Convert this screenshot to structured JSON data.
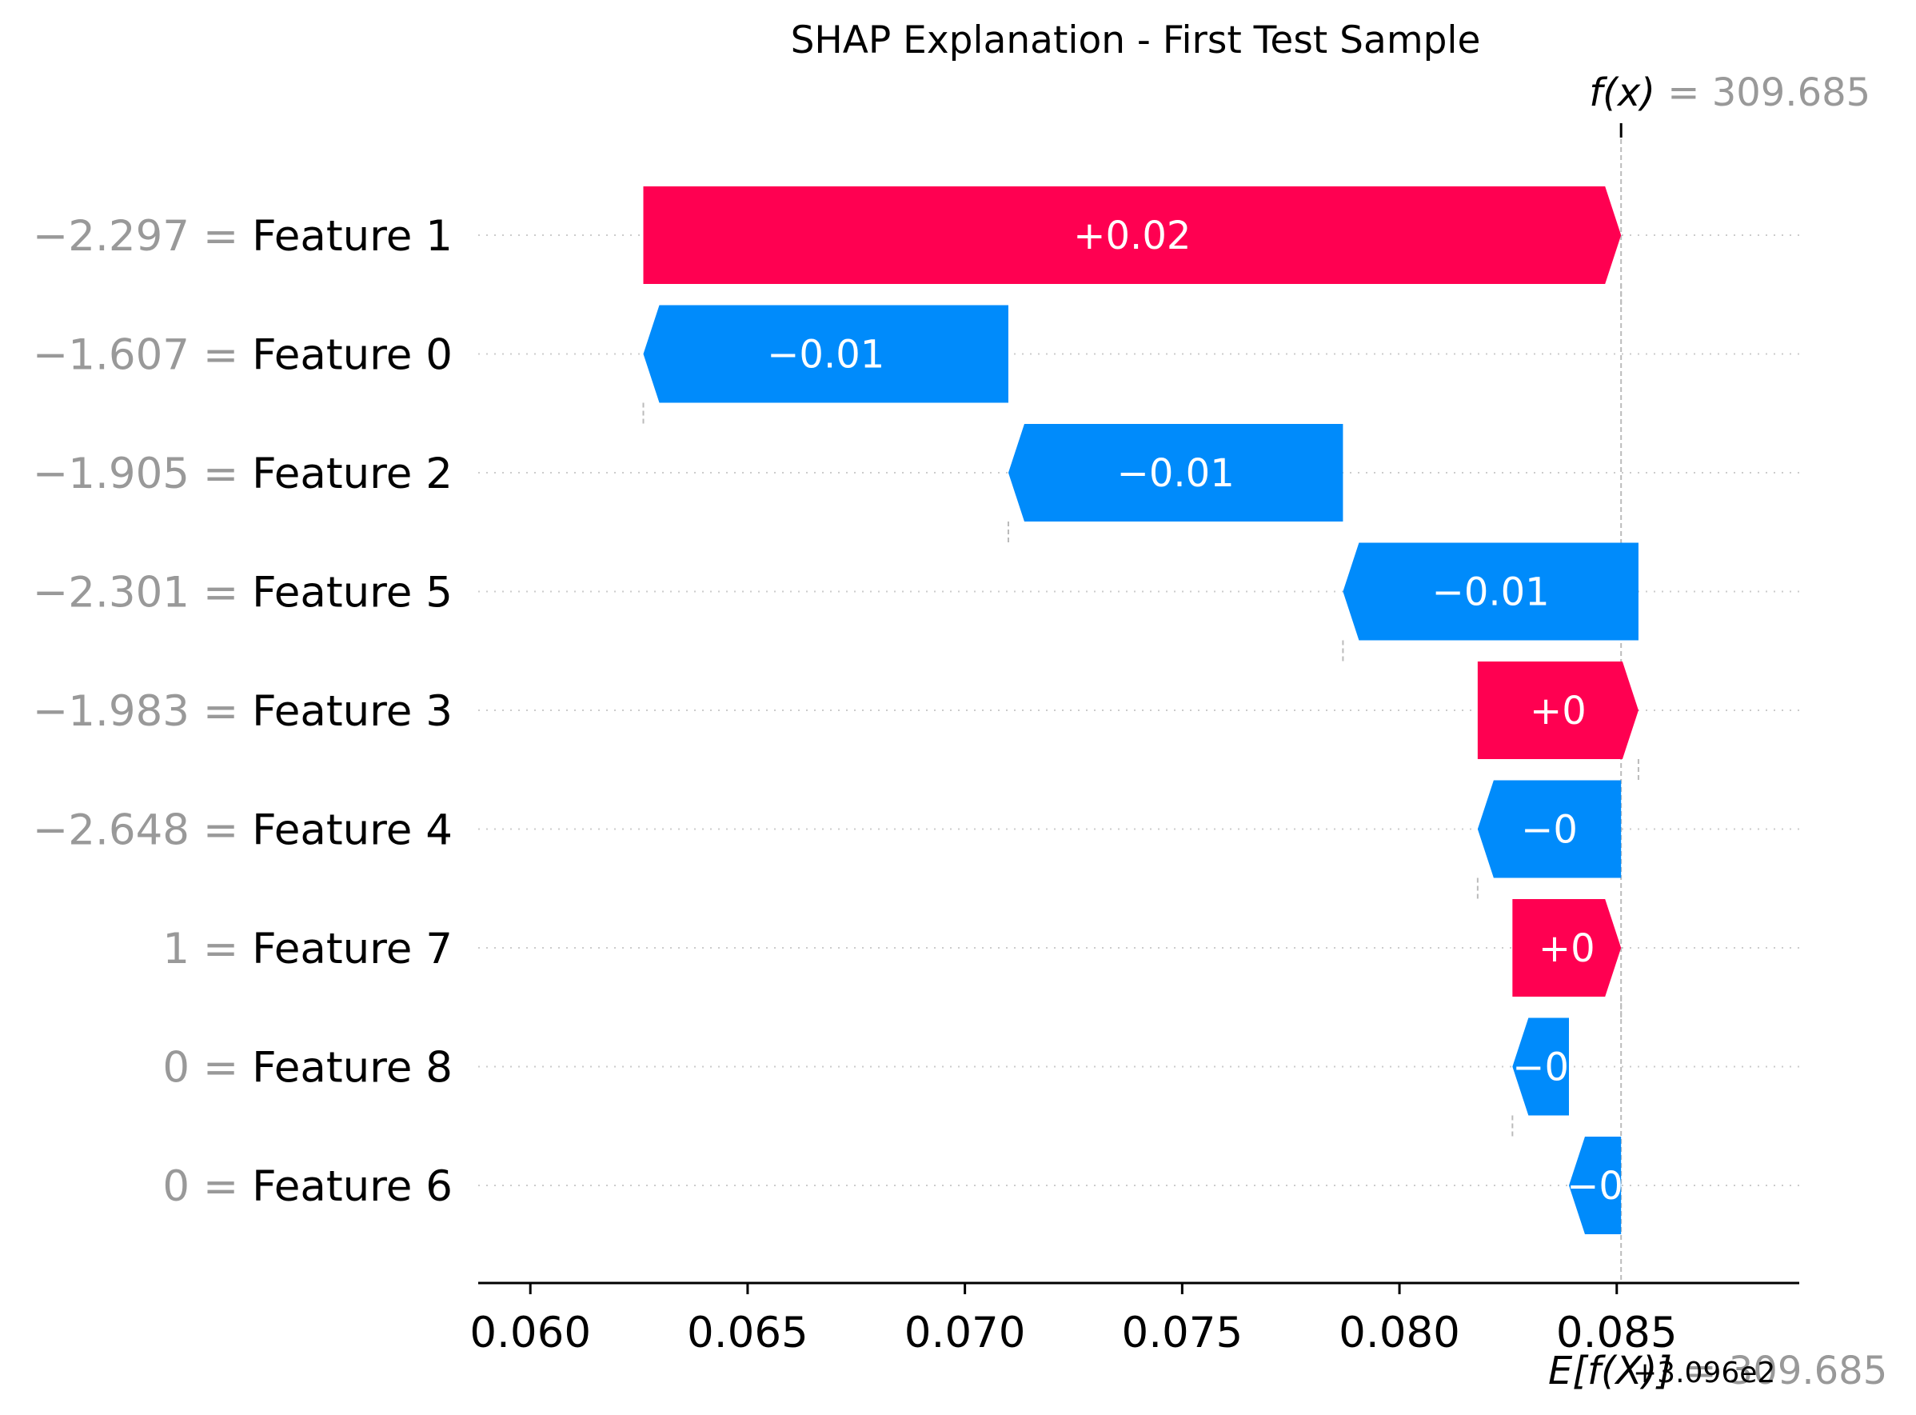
{
  "chart_data": {
    "type": "bar",
    "subtype": "shap-waterfall",
    "title": "SHAP Explanation - First Test Sample",
    "xlim": [
      0.0588,
      0.0892
    ],
    "xticks": [
      0.06,
      0.065,
      0.07,
      0.075,
      0.08,
      0.085
    ],
    "xtick_labels": [
      "0.060",
      "0.065",
      "0.070",
      "0.075",
      "0.080",
      "0.085"
    ],
    "axis_offset_text": "+3.096e2",
    "fx_label": "f(x)",
    "fx_value_text": " = 309.685",
    "fx_x": 0.0851,
    "expected_label": "E[f(X)]",
    "expected_value_text": " = 309.685",
    "grid": "dotted horizontal",
    "colors": {
      "positive": "#ff0051",
      "negative": "#008bfb",
      "value_text": "#999999",
      "guide": "#bbbbbb"
    },
    "features": [
      {
        "name": "Feature 1",
        "value_text": "−2.297",
        "start": 0.0626,
        "end": 0.0851,
        "label": "+0.02"
      },
      {
        "name": "Feature 0",
        "value_text": "−1.607",
        "start": 0.071,
        "end": 0.0626,
        "label": "−0.01"
      },
      {
        "name": "Feature 2",
        "value_text": "−1.905",
        "start": 0.0787,
        "end": 0.071,
        "label": "−0.01"
      },
      {
        "name": "Feature 5",
        "value_text": "−2.301",
        "start": 0.0855,
        "end": 0.0787,
        "label": "−0.01"
      },
      {
        "name": "Feature 3",
        "value_text": "−1.983",
        "start": 0.0818,
        "end": 0.0855,
        "label": "+0"
      },
      {
        "name": "Feature 4",
        "value_text": "−2.648",
        "start": 0.0851,
        "end": 0.0818,
        "label": "−0"
      },
      {
        "name": "Feature 7",
        "value_text": "1",
        "start": 0.0826,
        "end": 0.0851,
        "label": "+0"
      },
      {
        "name": "Feature 8",
        "value_text": "0",
        "start": 0.0839,
        "end": 0.0826,
        "label": "−0"
      },
      {
        "name": "Feature 6",
        "value_text": "0",
        "start": 0.0851,
        "end": 0.0839,
        "label": "−0"
      }
    ]
  }
}
